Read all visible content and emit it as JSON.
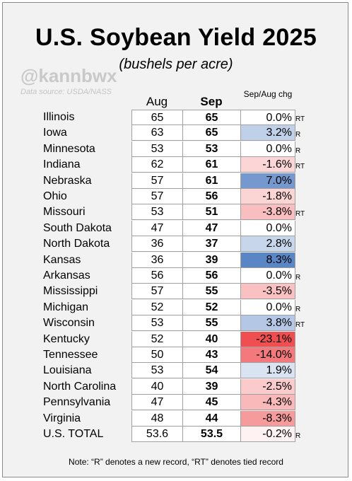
{
  "title": "U.S. Soybean Yield 2025",
  "subtitle": "(bushels per acre)",
  "handle": "@kannbwx",
  "source": "Data source: USDA/NASS",
  "note": "Note: “R” denotes a new record, “RT” denotes tied record",
  "chart_data": {
    "type": "table",
    "columns": [
      "Aug",
      "Sep",
      "Sep/Aug chg"
    ],
    "rows": [
      {
        "state": "Illinois",
        "aug": "65",
        "sep": "65",
        "chg": "0.0%",
        "pct": 0.0,
        "flag": "RT"
      },
      {
        "state": "Iowa",
        "aug": "63",
        "sep": "65",
        "chg": "3.2%",
        "pct": 3.2,
        "flag": "R"
      },
      {
        "state": "Minnesota",
        "aug": "53",
        "sep": "53",
        "chg": "0.0%",
        "pct": 0.0,
        "flag": "R"
      },
      {
        "state": "Indiana",
        "aug": "62",
        "sep": "61",
        "chg": "-1.6%",
        "pct": -1.6,
        "flag": "RT"
      },
      {
        "state": "Nebraska",
        "aug": "57",
        "sep": "61",
        "chg": "7.0%",
        "pct": 7.0,
        "flag": ""
      },
      {
        "state": "Ohio",
        "aug": "57",
        "sep": "56",
        "chg": "-1.8%",
        "pct": -1.8,
        "flag": ""
      },
      {
        "state": "Missouri",
        "aug": "53",
        "sep": "51",
        "chg": "-3.8%",
        "pct": -3.8,
        "flag": "RT"
      },
      {
        "state": "South Dakota",
        "aug": "47",
        "sep": "47",
        "chg": "0.0%",
        "pct": 0.0,
        "flag": ""
      },
      {
        "state": "North Dakota",
        "aug": "36",
        "sep": "37",
        "chg": "2.8%",
        "pct": 2.8,
        "flag": ""
      },
      {
        "state": "Kansas",
        "aug": "36",
        "sep": "39",
        "chg": "8.3%",
        "pct": 8.3,
        "flag": ""
      },
      {
        "state": "Arkansas",
        "aug": "56",
        "sep": "56",
        "chg": "0.0%",
        "pct": 0.0,
        "flag": "R"
      },
      {
        "state": "Mississippi",
        "aug": "57",
        "sep": "55",
        "chg": "-3.5%",
        "pct": -3.5,
        "flag": ""
      },
      {
        "state": "Michigan",
        "aug": "52",
        "sep": "52",
        "chg": "0.0%",
        "pct": 0.0,
        "flag": "R"
      },
      {
        "state": "Wisconsin",
        "aug": "53",
        "sep": "55",
        "chg": "3.8%",
        "pct": 3.8,
        "flag": "RT"
      },
      {
        "state": "Kentucky",
        "aug": "52",
        "sep": "40",
        "chg": "-23.1%",
        "pct": -23.1,
        "flag": ""
      },
      {
        "state": "Tennessee",
        "aug": "50",
        "sep": "43",
        "chg": "-14.0%",
        "pct": -14.0,
        "flag": ""
      },
      {
        "state": "Louisiana",
        "aug": "53",
        "sep": "54",
        "chg": "1.9%",
        "pct": 1.9,
        "flag": ""
      },
      {
        "state": "North Carolina",
        "aug": "40",
        "sep": "39",
        "chg": "-2.5%",
        "pct": -2.5,
        "flag": ""
      },
      {
        "state": "Pennsylvania",
        "aug": "47",
        "sep": "45",
        "chg": "-4.3%",
        "pct": -4.3,
        "flag": ""
      },
      {
        "state": "Virginia",
        "aug": "48",
        "sep": "44",
        "chg": "-8.3%",
        "pct": -8.3,
        "flag": ""
      },
      {
        "state": "U.S. TOTAL",
        "aug": "53.6",
        "sep": "53.5",
        "chg": "-0.2%",
        "pct": -0.2,
        "flag": "R"
      }
    ],
    "colors": {
      "positive_max": "#5b86c6",
      "negative_max": "#f04f52",
      "neutral": "#ffffff"
    }
  }
}
